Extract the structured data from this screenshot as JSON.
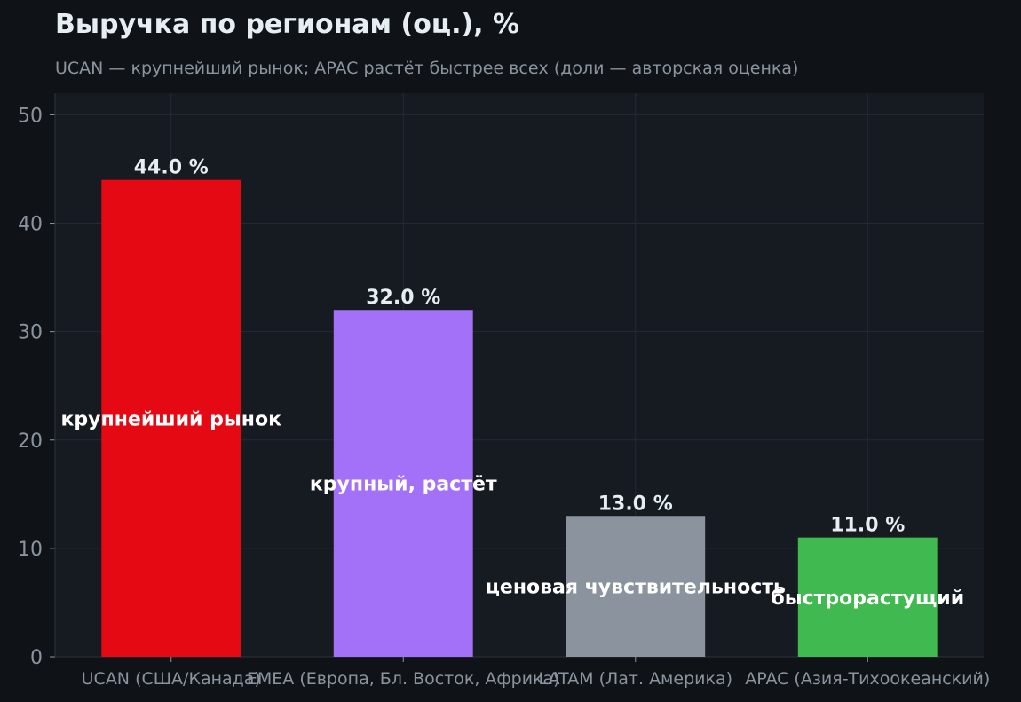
{
  "chart_data": {
    "type": "bar",
    "title": "Выручка по регионам (оц.), %",
    "subtitle": "UCAN — крупнейший рынок; APAC растёт быстрее всех (доли — авторская оценка)",
    "categories": [
      "UCAN (США/Канада)",
      "EMEA (Европа, Бл. Восток, Африка)",
      "LATAM (Лат. Америка)",
      "APAC (Азия-Тихоокеанский)"
    ],
    "values": [
      44.0,
      32.0,
      13.0,
      11.0
    ],
    "value_labels": [
      "44.0 %",
      "32.0 %",
      "13.0 %",
      "11.0 %"
    ],
    "annotations": [
      "крупнейший рынок",
      "крупный, растёт",
      "ценовая чувствительность",
      "быстрорастущий"
    ],
    "colors": [
      "#e50914",
      "#a371f7",
      "#8b949e",
      "#3fb950"
    ],
    "ylim": [
      0,
      52
    ],
    "yticks": [
      0,
      10,
      20,
      30,
      40,
      50
    ],
    "xlabel": "",
    "ylabel": "",
    "grid": true,
    "legend": "none"
  }
}
